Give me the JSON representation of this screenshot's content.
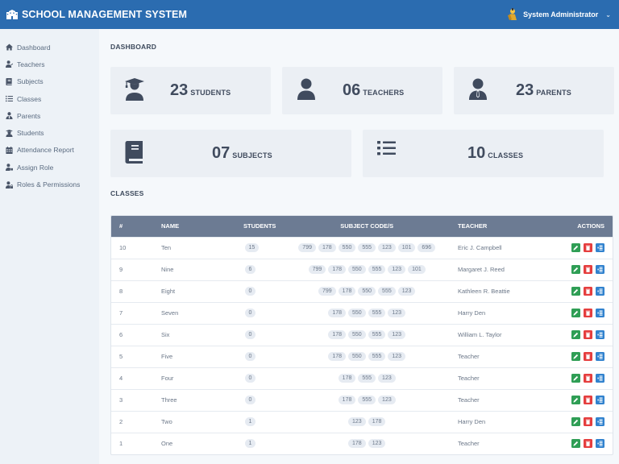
{
  "header": {
    "app_title": "SCHOOL MANAGEMENT SYSTEM",
    "user_name": "System Administrator",
    "colors": {
      "topbar": "#2b6cb0"
    }
  },
  "sidebar": {
    "items": [
      {
        "label": "Dashboard",
        "icon": "home-icon"
      },
      {
        "label": "Teachers",
        "icon": "teacher-icon"
      },
      {
        "label": "Subjects",
        "icon": "book-icon"
      },
      {
        "label": "Classes",
        "icon": "list-icon"
      },
      {
        "label": "Parents",
        "icon": "user-tie-icon"
      },
      {
        "label": "Students",
        "icon": "graduate-icon"
      },
      {
        "label": "Attendance Report",
        "icon": "calendar-icon"
      },
      {
        "label": "Assign Role",
        "icon": "user-tag-icon"
      },
      {
        "label": "Roles & Permissions",
        "icon": "user-lock-icon"
      }
    ]
  },
  "dashboard": {
    "title": "DASHBOARD",
    "cards": [
      {
        "value": "23",
        "label": "STUDENTS",
        "icon": "graduate-icon"
      },
      {
        "value": "06",
        "label": "TEACHERS",
        "icon": "user-icon"
      },
      {
        "value": "23",
        "label": "PARENTS",
        "icon": "user-tie-icon"
      },
      {
        "value": "07",
        "label": "SUBJECTS",
        "icon": "book-icon"
      },
      {
        "value": "10",
        "label": "CLASSES",
        "icon": "list-icon"
      }
    ]
  },
  "classes": {
    "title": "CLASSES",
    "columns": [
      "#",
      "NAME",
      "STUDENTS",
      "SUBJECT CODE/S",
      "TEACHER",
      "ACTIONS"
    ],
    "rows": [
      {
        "id": "10",
        "name": "Ten",
        "students": "15",
        "subjects": [
          "799",
          "178",
          "550",
          "555",
          "123",
          "101",
          "696"
        ],
        "teacher": "Eric J. Campbell"
      },
      {
        "id": "9",
        "name": "Nine",
        "students": "6",
        "subjects": [
          "799",
          "178",
          "550",
          "555",
          "123",
          "101"
        ],
        "teacher": "Margaret J. Reed"
      },
      {
        "id": "8",
        "name": "Eight",
        "students": "0",
        "subjects": [
          "799",
          "178",
          "550",
          "555",
          "123"
        ],
        "teacher": "Kathleen R. Beattie"
      },
      {
        "id": "7",
        "name": "Seven",
        "students": "0",
        "subjects": [
          "178",
          "550",
          "555",
          "123"
        ],
        "teacher": "Harry Den"
      },
      {
        "id": "6",
        "name": "Six",
        "students": "0",
        "subjects": [
          "178",
          "550",
          "555",
          "123"
        ],
        "teacher": "William L. Taylor"
      },
      {
        "id": "5",
        "name": "Five",
        "students": "0",
        "subjects": [
          "178",
          "550",
          "555",
          "123"
        ],
        "teacher": "Teacher"
      },
      {
        "id": "4",
        "name": "Four",
        "students": "0",
        "subjects": [
          "178",
          "555",
          "123"
        ],
        "teacher": "Teacher"
      },
      {
        "id": "3",
        "name": "Three",
        "students": "0",
        "subjects": [
          "178",
          "555",
          "123"
        ],
        "teacher": "Teacher"
      },
      {
        "id": "2",
        "name": "Two",
        "students": "1",
        "subjects": [
          "123",
          "178"
        ],
        "teacher": "Harry Den"
      },
      {
        "id": "1",
        "name": "One",
        "students": "1",
        "subjects": [
          "178",
          "123"
        ],
        "teacher": "Teacher"
      }
    ],
    "actions": [
      "edit",
      "delete",
      "view"
    ],
    "colors": {
      "header": "#6c7b93",
      "edit": "#2f9e55",
      "delete": "#e53e3e",
      "view": "#3182ce"
    }
  }
}
